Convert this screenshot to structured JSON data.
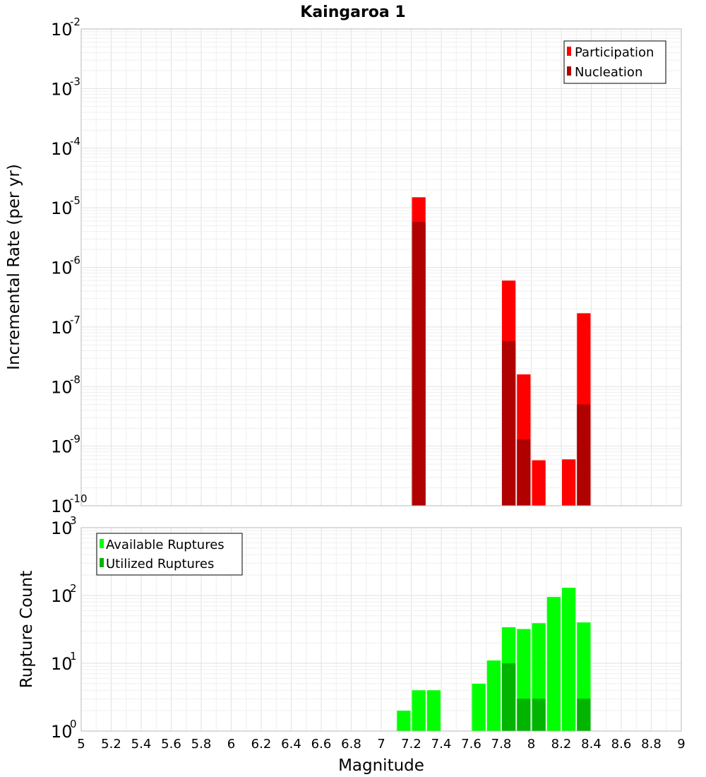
{
  "chart_data": [
    {
      "type": "bar",
      "title": "Kaingaroa 1",
      "xlabel": "",
      "ylabel": "Incremental Rate (per yr)",
      "y_scale": "log",
      "ylim_exponents": [
        -10,
        -2
      ],
      "y_ticks": [
        {
          "base": "10",
          "exp": "-10"
        },
        {
          "base": "10",
          "exp": "-9"
        },
        {
          "base": "10",
          "exp": "-8"
        },
        {
          "base": "10",
          "exp": "-7"
        },
        {
          "base": "10",
          "exp": "-6"
        },
        {
          "base": "10",
          "exp": "-5"
        },
        {
          "base": "10",
          "exp": "-4"
        },
        {
          "base": "10",
          "exp": "-3"
        },
        {
          "base": "10",
          "exp": "-2"
        }
      ],
      "xlim": [
        5,
        9
      ],
      "bar_width": 0.1,
      "legend": {
        "placement": "top-right"
      },
      "series": [
        {
          "name": "Participation",
          "color": "#ff0000",
          "x": [
            7.25,
            7.85,
            7.95,
            8.05,
            8.25,
            8.35
          ],
          "values": [
            1.5e-05,
            6e-07,
            1.6e-08,
            5.8e-10,
            6e-10,
            1.7e-07
          ]
        },
        {
          "name": "Nucleation",
          "color": "#b00000",
          "x": [
            7.25,
            7.85,
            7.95,
            8.35
          ],
          "values": [
            5.8e-06,
            5.8e-08,
            1.3e-09,
            5e-09
          ]
        }
      ]
    },
    {
      "type": "bar",
      "title": "",
      "xlabel": "Magnitude",
      "ylabel": "Rupture Count",
      "y_scale": "log",
      "ylim_exponents": [
        0,
        3
      ],
      "y_ticks": [
        {
          "base": "10",
          "exp": "0"
        },
        {
          "base": "10",
          "exp": "1"
        },
        {
          "base": "10",
          "exp": "2"
        },
        {
          "base": "10",
          "exp": "3"
        }
      ],
      "xlim": [
        5,
        9
      ],
      "bar_width": 0.1,
      "x_ticks": [
        "5",
        "5.2",
        "5.4",
        "5.6",
        "5.8",
        "6",
        "6.2",
        "6.4",
        "6.6",
        "6.8",
        "7",
        "7.2",
        "7.4",
        "7.6",
        "7.8",
        "8",
        "8.2",
        "8.4",
        "8.6",
        "8.8",
        "9"
      ],
      "legend": {
        "placement": "top-left"
      },
      "series": [
        {
          "name": "Available Ruptures",
          "color": "#00ff00",
          "x": [
            6.85,
            7.15,
            7.25,
            7.35,
            7.55,
            7.65,
            7.75,
            7.85,
            7.95,
            8.05,
            8.15,
            8.25,
            8.35
          ],
          "values": [
            1,
            2,
            4,
            4,
            1,
            5,
            11,
            34,
            32,
            39,
            95,
            130,
            40
          ]
        },
        {
          "name": "Utilized Ruptures",
          "color": "#00b400",
          "x": [
            7.15,
            7.25,
            7.65,
            7.85,
            7.95,
            8.05,
            8.15,
            8.25,
            8.35
          ],
          "values": [
            1,
            1,
            1,
            10,
            3,
            3,
            1,
            1,
            3
          ]
        }
      ]
    }
  ]
}
